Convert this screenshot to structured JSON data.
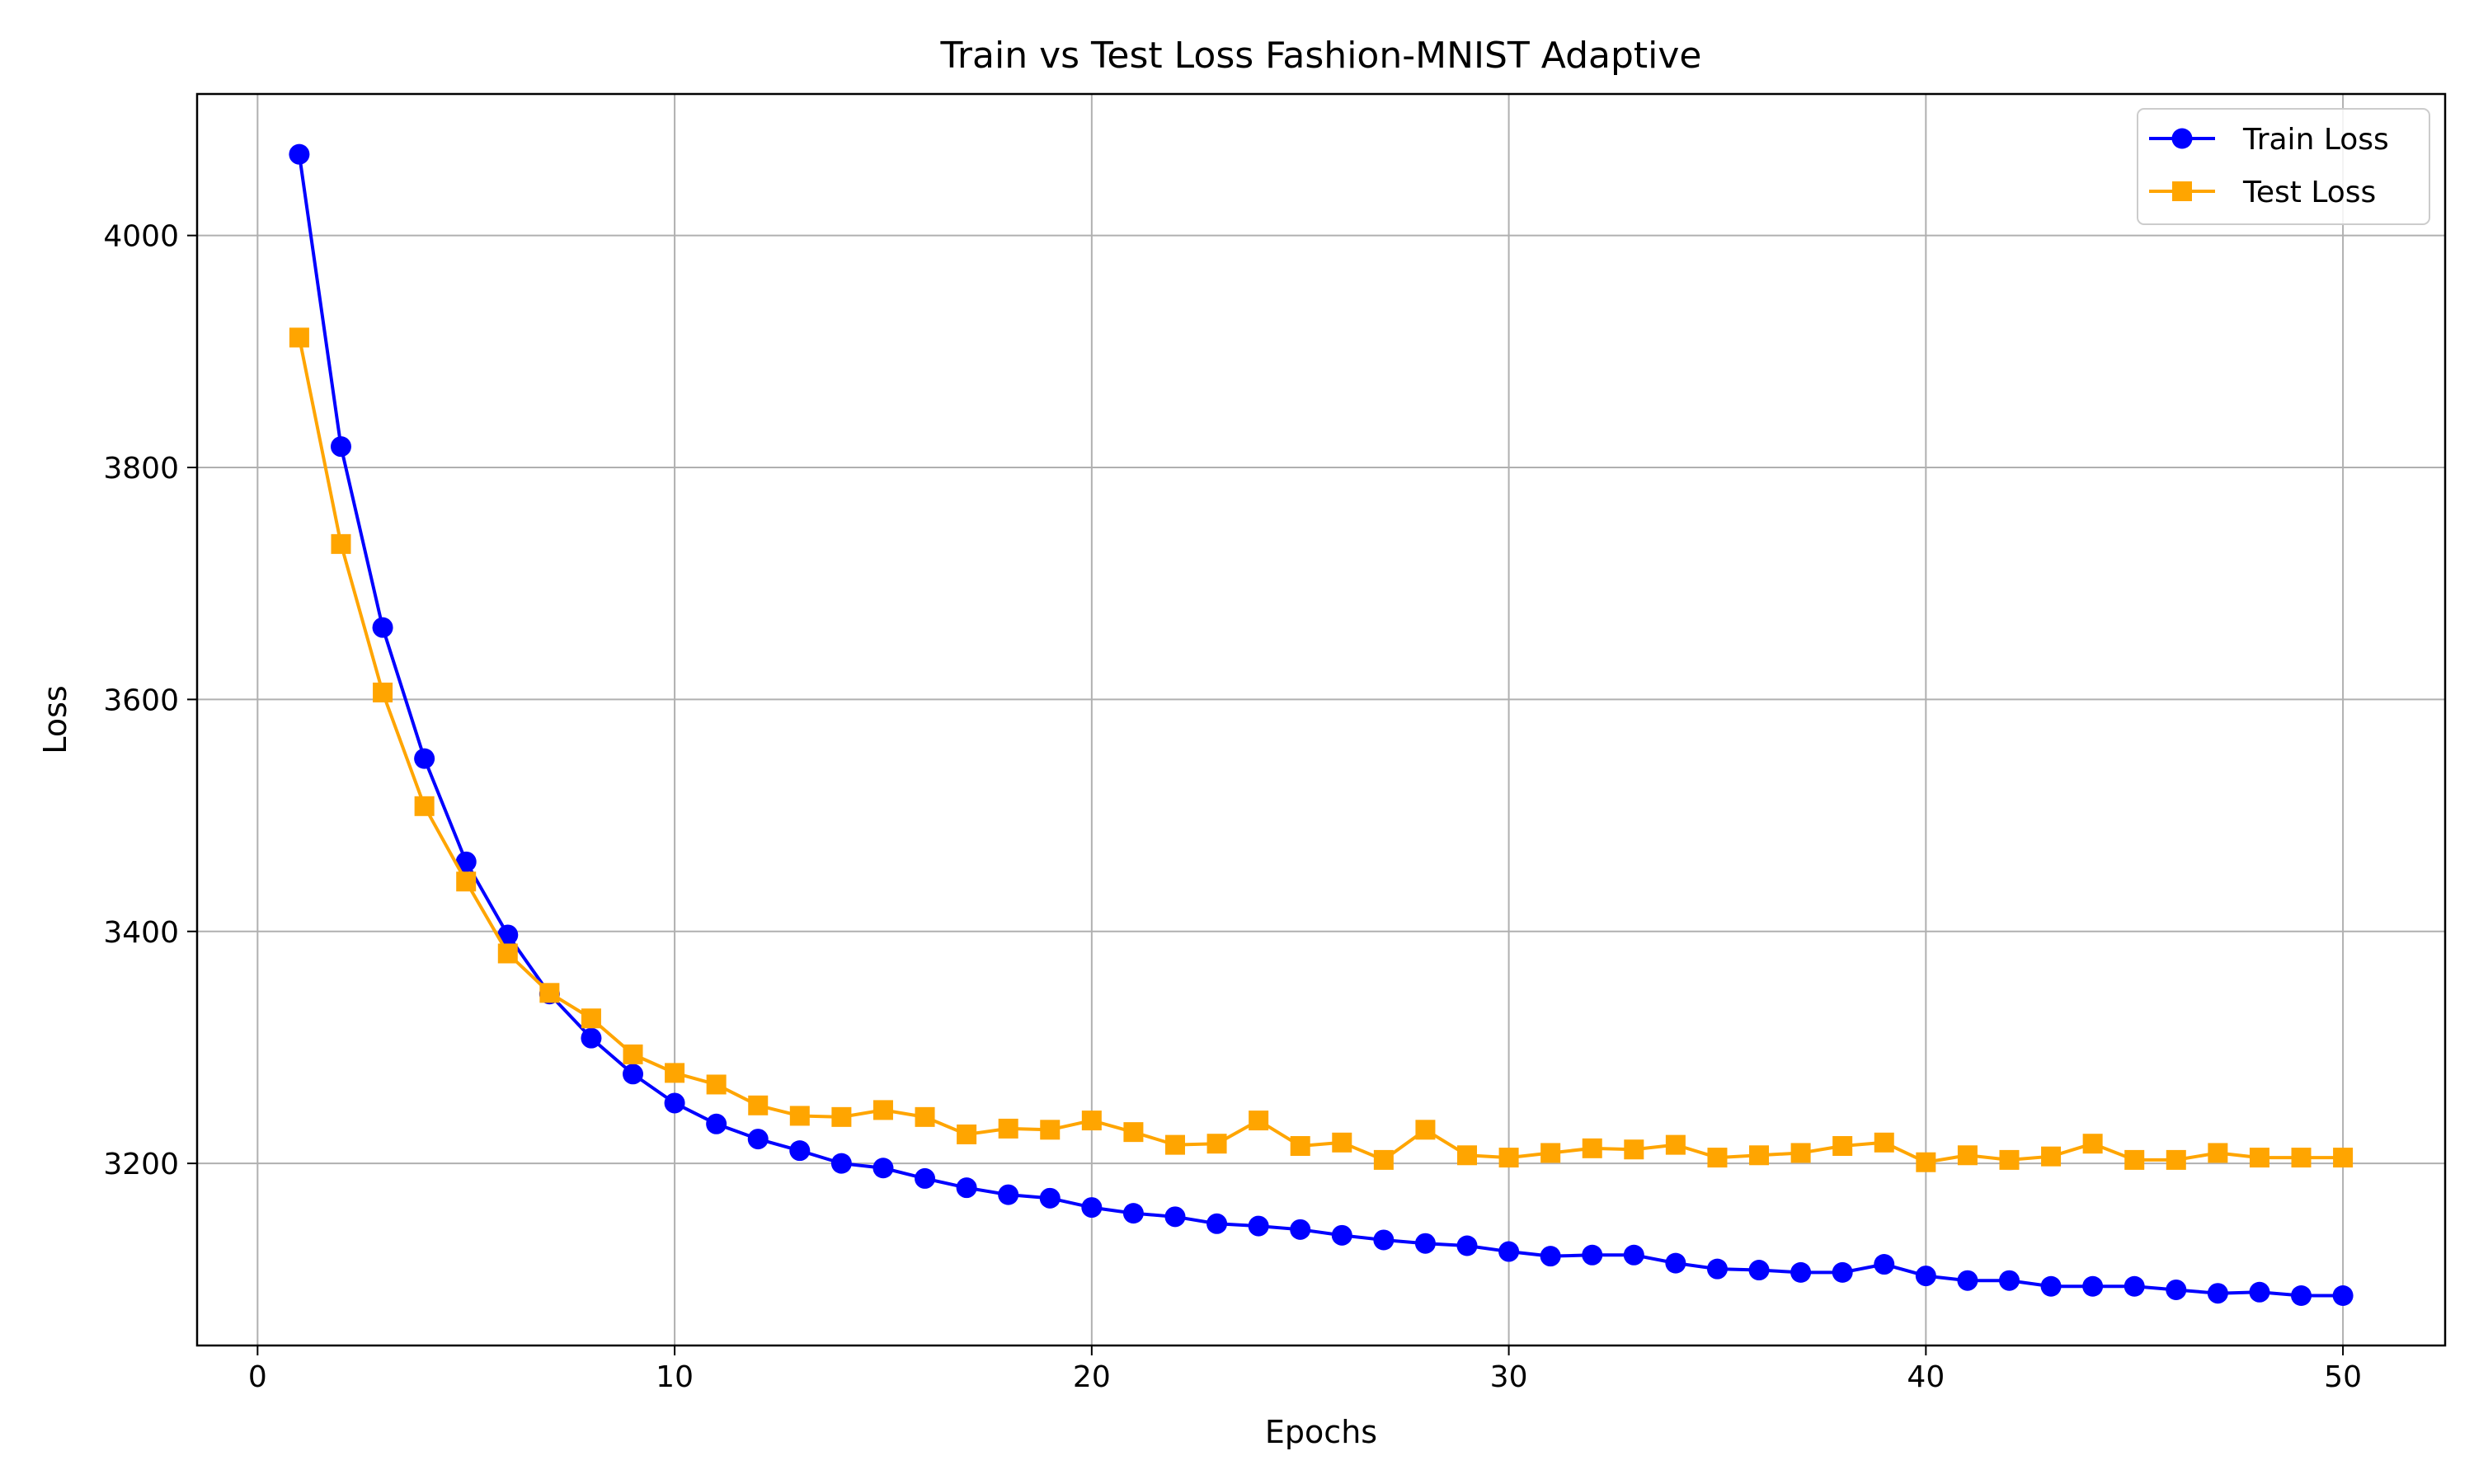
{
  "chart_data": {
    "type": "line",
    "title": "Train vs Test Loss Fashion-MNIST Adaptive",
    "xlabel": "Epochs",
    "ylabel": "Loss",
    "xlim": [
      -1.45,
      52.45
    ],
    "ylim": [
      3043,
      4122
    ],
    "xticks": [
      0,
      10,
      20,
      30,
      40,
      50
    ],
    "yticks": [
      3200,
      3400,
      3600,
      3800,
      4000
    ],
    "grid": true,
    "legend_position": "upper right",
    "x": [
      1,
      2,
      3,
      4,
      5,
      6,
      7,
      8,
      9,
      10,
      11,
      12,
      13,
      14,
      15,
      16,
      17,
      18,
      19,
      20,
      21,
      22,
      23,
      24,
      25,
      26,
      27,
      28,
      29,
      30,
      31,
      32,
      33,
      34,
      35,
      36,
      37,
      38,
      39,
      40,
      41,
      42,
      43,
      44,
      45,
      46,
      47,
      48,
      49,
      50
    ],
    "series": [
      {
        "name": "Train Loss",
        "color": "#0000ff",
        "marker": "circle",
        "values": [
          4070,
          3818,
          3662,
          3549,
          3460,
          3397,
          3346,
          3308,
          3277,
          3252,
          3234,
          3221,
          3211,
          3200,
          3196,
          3187,
          3179,
          3173,
          3170,
          3162,
          3157,
          3154,
          3148,
          3146,
          3143,
          3138,
          3134,
          3131,
          3129,
          3124,
          3120,
          3121,
          3121,
          3114,
          3109,
          3108,
          3106,
          3106,
          3113,
          3103,
          3099,
          3099,
          3094,
          3094,
          3094,
          3091,
          3088,
          3089,
          3086,
          3086
        ]
      },
      {
        "name": "Test Loss",
        "color": "#ffa500",
        "marker": "square",
        "values": [
          3912,
          3734,
          3606,
          3508,
          3443,
          3381,
          3347,
          3325,
          3294,
          3278,
          3268,
          3250,
          3241,
          3240,
          3246,
          3240,
          3225,
          3230,
          3229,
          3237,
          3227,
          3216,
          3217,
          3237,
          3215,
          3218,
          3203,
          3229,
          3207,
          3205,
          3209,
          3213,
          3212,
          3216,
          3205,
          3207,
          3209,
          3215,
          3218,
          3201,
          3207,
          3203,
          3206,
          3217,
          3203,
          3203,
          3209,
          3205,
          3205,
          3205
        ]
      }
    ]
  }
}
